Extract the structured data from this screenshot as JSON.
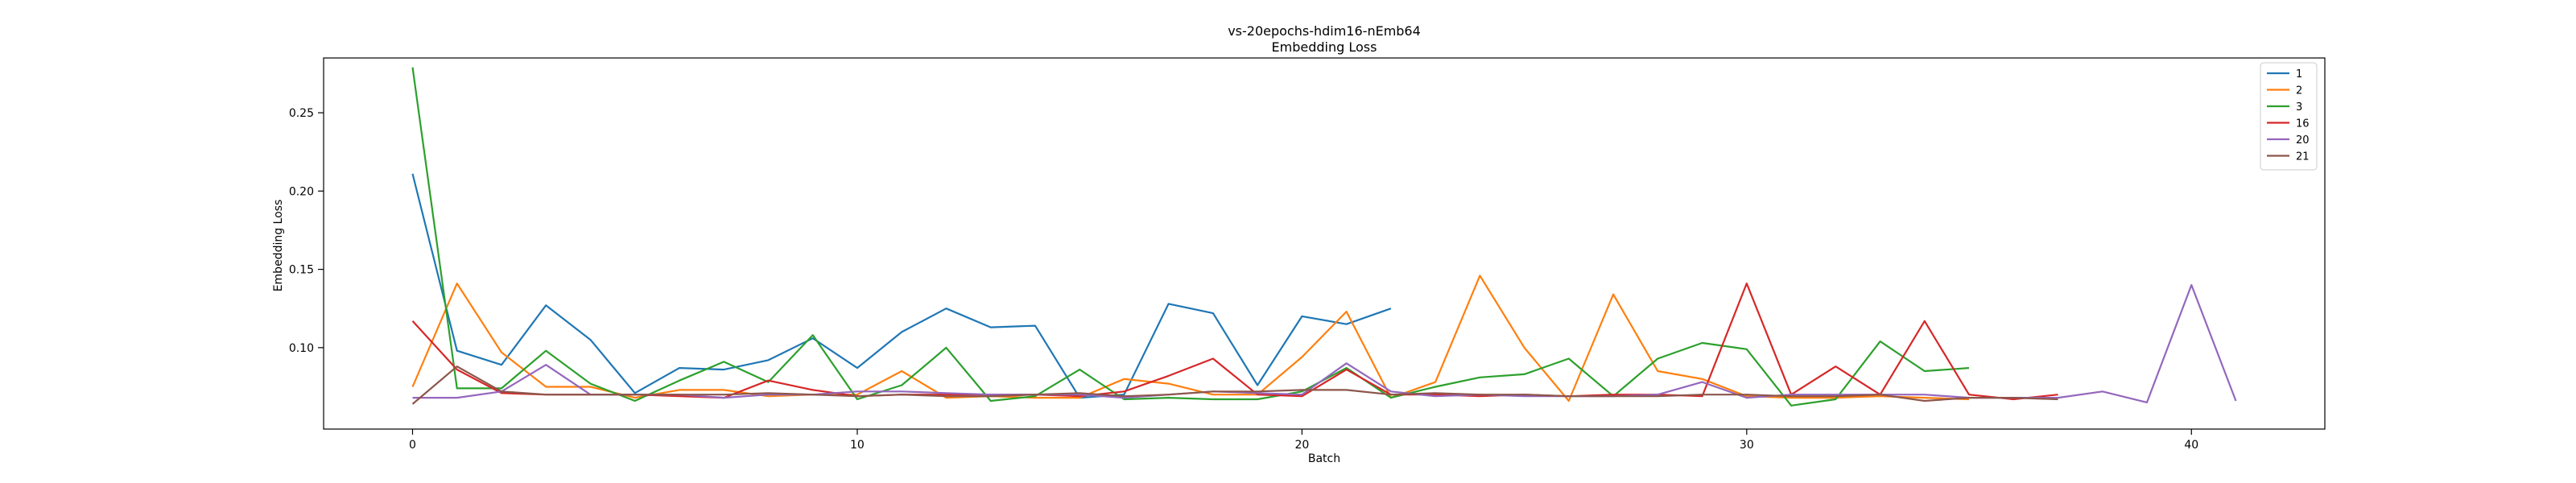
{
  "chart_data": {
    "type": "line",
    "title": "vs-20epochs-hdim16-nEmb64",
    "subtitle": "Embedding Loss",
    "xlabel": "Batch",
    "ylabel": "Embedding Loss",
    "xlim": [
      -2,
      43
    ],
    "ylim": [
      0.048,
      0.285
    ],
    "xticks": [
      0,
      10,
      20,
      30,
      40
    ],
    "yticks": [
      0.1,
      0.15,
      0.2,
      0.25
    ],
    "ytick_labels": [
      "0.10",
      "0.15",
      "0.20",
      "0.25"
    ],
    "grid": false,
    "legend_position": "top-right",
    "series": [
      {
        "name": "1",
        "color": "#1f77b4",
        "values": [
          0.211,
          0.098,
          0.089,
          0.127,
          0.105,
          0.071,
          0.087,
          0.086,
          0.092,
          0.106,
          0.087,
          0.11,
          0.125,
          0.113,
          0.114,
          0.068,
          0.07,
          0.128,
          0.122,
          0.076,
          0.12,
          0.115,
          0.125
        ]
      },
      {
        "name": "2",
        "color": "#ff7f0e",
        "values": [
          0.075,
          0.141,
          0.097,
          0.075,
          0.075,
          0.068,
          0.073,
          0.073,
          0.069,
          0.07,
          0.07,
          0.085,
          0.068,
          0.069,
          0.068,
          0.068,
          0.08,
          0.077,
          0.07,
          0.07,
          0.094,
          0.123,
          0.068,
          0.078,
          0.146,
          0.1,
          0.066,
          0.134,
          0.085,
          0.08,
          0.069,
          0.068,
          0.068,
          0.069,
          0.068,
          0.067
        ]
      },
      {
        "name": "3",
        "color": "#2ca02c",
        "values": [
          0.279,
          0.074,
          0.074,
          0.098,
          0.077,
          0.066,
          0.079,
          0.091,
          0.078,
          0.108,
          0.067,
          0.076,
          0.1,
          0.066,
          0.069,
          0.086,
          0.067,
          0.068,
          0.067,
          0.067,
          0.072,
          0.087,
          0.068,
          0.075,
          0.081,
          0.083,
          0.093,
          0.069,
          0.093,
          0.103,
          0.099,
          0.063,
          0.067,
          0.104,
          0.085,
          0.087
        ]
      },
      {
        "name": "16",
        "color": "#d62728",
        "values": [
          0.117,
          0.086,
          0.071,
          0.07,
          0.07,
          0.07,
          0.069,
          0.068,
          0.079,
          0.073,
          0.069,
          0.07,
          0.07,
          0.07,
          0.07,
          0.069,
          0.072,
          0.082,
          0.093,
          0.07,
          0.069,
          0.086,
          0.07,
          0.07,
          0.069,
          0.07,
          0.069,
          0.07,
          0.07,
          0.069,
          0.141,
          0.07,
          0.088,
          0.07,
          0.117,
          0.07,
          0.067,
          0.07
        ]
      },
      {
        "name": "20",
        "color": "#9467bd",
        "values": [
          0.068,
          0.068,
          0.072,
          0.089,
          0.07,
          0.07,
          0.07,
          0.068,
          0.07,
          0.07,
          0.072,
          0.072,
          0.071,
          0.07,
          0.07,
          0.07,
          0.068,
          0.07,
          0.072,
          0.071,
          0.07,
          0.09,
          0.072,
          0.069,
          0.07,
          0.069,
          0.069,
          0.069,
          0.07,
          0.078,
          0.068,
          0.07,
          0.07,
          0.07,
          0.07,
          0.068,
          0.068,
          0.068,
          0.072,
          0.065,
          0.14,
          0.066
        ]
      },
      {
        "name": "21",
        "color": "#8c564b",
        "values": [
          0.064,
          0.088,
          0.072,
          0.07,
          0.07,
          0.07,
          0.07,
          0.07,
          0.071,
          0.07,
          0.069,
          0.07,
          0.069,
          0.069,
          0.07,
          0.071,
          0.069,
          0.07,
          0.072,
          0.072,
          0.073,
          0.073,
          0.07,
          0.071,
          0.07,
          0.07,
          0.069,
          0.069,
          0.069,
          0.07,
          0.07,
          0.069,
          0.069,
          0.07,
          0.066,
          0.068,
          0.068,
          0.067
        ]
      }
    ]
  }
}
